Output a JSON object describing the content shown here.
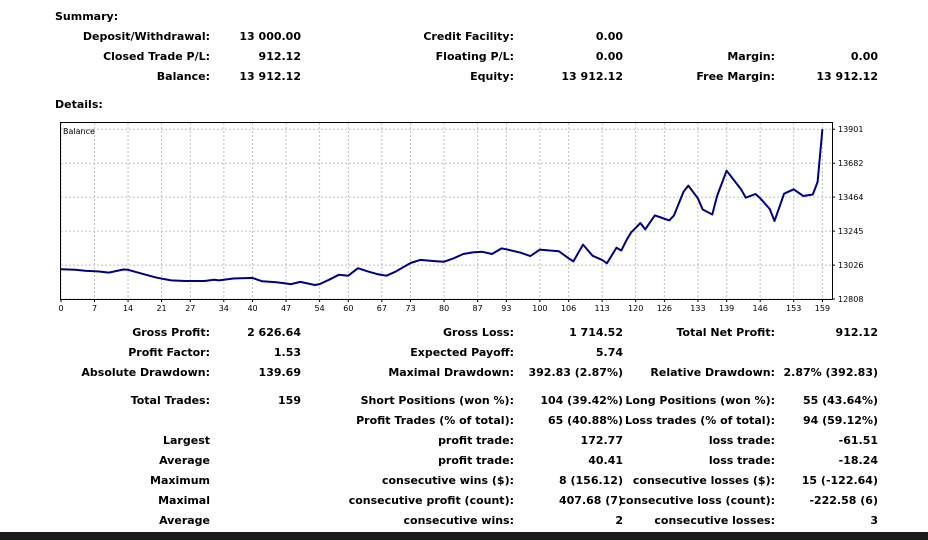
{
  "summary_title": "Summary:",
  "details_title": "Details:",
  "summary": {
    "col1": [
      {
        "label": "Deposit/Withdrawal:",
        "value": "13 000.00"
      },
      {
        "label": "Closed Trade P/L:",
        "value": "912.12"
      },
      {
        "label": "Balance:",
        "value": "13 912.12"
      }
    ],
    "col2": [
      {
        "label": "Credit Facility:",
        "value": "0.00"
      },
      {
        "label": "Floating P/L:",
        "value": "0.00"
      },
      {
        "label": "Equity:",
        "value": "13 912.12"
      }
    ],
    "col3": [
      {
        "label": "Margin:",
        "value": "0.00"
      },
      {
        "label": "Free Margin:",
        "value": "13 912.12"
      }
    ]
  },
  "details": {
    "col1": [
      {
        "label": "Gross Profit:",
        "value": "2 626.64"
      },
      {
        "label": "Profit Factor:",
        "value": "1.53"
      },
      {
        "label": "Absolute Drawdown:",
        "value": "139.69"
      },
      {
        "label": "Total Trades:",
        "value": "159"
      }
    ],
    "col2": [
      {
        "label": "Gross Loss:",
        "value": "1 714.52"
      },
      {
        "label": "Expected Payoff:",
        "value": "5.74"
      },
      {
        "label": "Maximal Drawdown:",
        "value": "392.83 (2.87%)"
      },
      {
        "label": "Short Positions (won %):",
        "value": "104 (39.42%)"
      },
      {
        "label": "Profit Trades (% of total):",
        "value": "65 (40.88%)"
      }
    ],
    "col3": [
      {
        "label": "Total Net Profit:",
        "value": "912.12"
      },
      {
        "label": "Relative Drawdown:",
        "value": "2.87% (392.83)"
      },
      {
        "label": "Long Positions (won %):",
        "value": "55 (43.64%)"
      },
      {
        "label": "Loss trades (% of total):",
        "value": "94 (59.12%)"
      }
    ],
    "extremes": [
      {
        "group": "Largest",
        "l1": "profit trade:",
        "v1": "172.77",
        "l2": "loss trade:",
        "v2": "-61.51"
      },
      {
        "group": "Average",
        "l1": "profit trade:",
        "v1": "40.41",
        "l2": "loss trade:",
        "v2": "-18.24"
      },
      {
        "group": "Maximum",
        "l1": "consecutive wins ($):",
        "v1": "8 (156.12)",
        "l2": "consecutive losses ($):",
        "v2": "15 (-122.64)"
      },
      {
        "group": "Maximal",
        "l1": "consecutive profit (count):",
        "v1": "407.68 (7)",
        "l2": "consecutive loss (count):",
        "v2": "-222.58 (6)"
      },
      {
        "group": "Average",
        "l1": "consecutive wins:",
        "v1": "2",
        "l2": "consecutive losses:",
        "v2": "3"
      }
    ]
  },
  "chart_data": {
    "type": "line",
    "title": "Balance",
    "line_color": "#000080",
    "grid_color": "#c0c0c0",
    "grid": true,
    "xlim": [
      0,
      161
    ],
    "ylim": [
      12808,
      13941
    ],
    "x_ticks": [
      0,
      7,
      14,
      21,
      27,
      34,
      40,
      47,
      54,
      60,
      67,
      73,
      80,
      87,
      93,
      100,
      106,
      113,
      120,
      126,
      133,
      139,
      146,
      153,
      159
    ],
    "y_ticks": [
      12808,
      13026,
      13245,
      13464,
      13682,
      13901
    ],
    "series": [
      {
        "x": [
          0,
          3,
          5,
          8,
          10,
          13,
          14,
          17,
          20,
          23,
          26,
          28,
          30,
          32,
          33,
          36,
          40,
          42,
          45,
          48,
          50,
          53,
          54,
          56,
          58,
          60,
          62,
          64,
          66,
          68,
          70,
          73,
          75,
          78,
          80,
          82,
          84,
          86,
          88,
          90,
          92,
          93,
          96,
          98,
          100,
          102,
          104,
          106,
          107,
          109,
          111,
          113,
          114,
          116,
          117,
          118,
          119,
          121,
          122,
          124,
          125,
          127,
          128,
          130,
          131,
          133,
          134,
          136,
          137,
          139,
          140,
          142,
          143,
          145,
          146,
          148,
          149,
          151,
          153,
          155,
          157,
          158,
          159
        ],
        "y": [
          13000,
          12996,
          12990,
          12985,
          12978,
          12998,
          12996,
          12970,
          12945,
          12928,
          12924,
          12924,
          12924,
          12932,
          12928,
          12940,
          12944,
          12922,
          12916,
          12904,
          12918,
          12898,
          12904,
          12932,
          12964,
          12958,
          13006,
          12986,
          12968,
          12958,
          12986,
          13040,
          13060,
          13052,
          13048,
          13070,
          13098,
          13108,
          13112,
          13098,
          13134,
          13128,
          13106,
          13084,
          13126,
          13120,
          13115,
          13070,
          13050,
          13158,
          13086,
          13060,
          13038,
          13138,
          13120,
          13182,
          13235,
          13297,
          13256,
          13346,
          13336,
          13314,
          13346,
          13498,
          13538,
          13456,
          13384,
          13352,
          13472,
          13634,
          13594,
          13515,
          13460,
          13484,
          13456,
          13388,
          13310,
          13486,
          13514,
          13471,
          13481,
          13562,
          13901
        ]
      }
    ]
  }
}
